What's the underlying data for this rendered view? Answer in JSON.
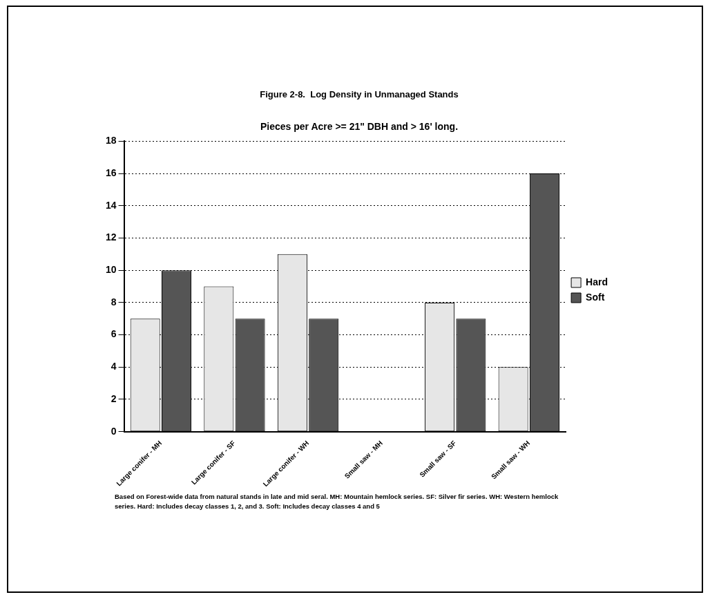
{
  "chart_data": {
    "type": "bar",
    "title": "Figure 2-8.  Log Density in Unmanaged Stands",
    "subtitle": "Pieces per Acre >= 21\" DBH and > 16' long.",
    "categories": [
      "Large conifer - MH",
      "Large conifer - SF",
      "Large conifer - WH",
      "Small saw - MH",
      "Small saw - SF",
      "Small saw - WH"
    ],
    "series": [
      {
        "name": "Hard",
        "color": "#e6e6e6",
        "values": [
          7,
          9,
          11,
          0,
          8,
          4
        ]
      },
      {
        "name": "Soft",
        "color": "#555555",
        "values": [
          10,
          7,
          7,
          0,
          7,
          16
        ]
      }
    ],
    "ylim": [
      0,
      18
    ],
    "yticks": [
      0,
      2,
      4,
      6,
      8,
      10,
      12,
      14,
      16,
      18
    ],
    "grid": "y",
    "legend": "right",
    "annotations": [
      "Based on Forest-wide data from natural stands in late and mid seral.  MH:  Mountain hemlock series.   SF:  Silver fir series.   WH:  Western hemlock series.   Hard:  Includes decay classes 1, 2, and 3.  Soft:  Includes decay classes 4 and 5"
    ]
  }
}
